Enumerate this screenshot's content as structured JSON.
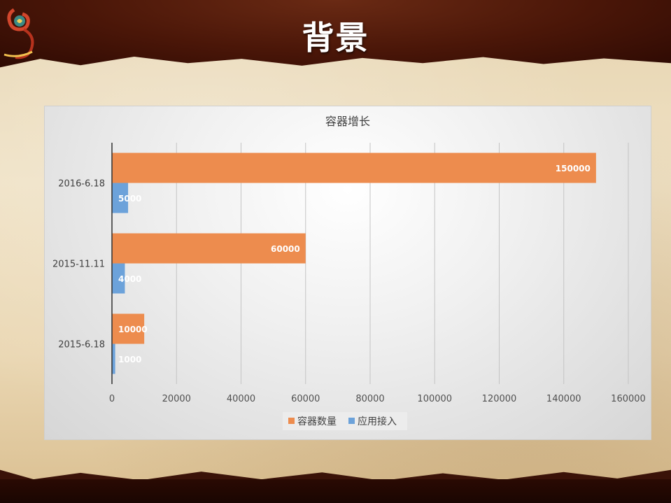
{
  "slide": {
    "title": "背景"
  },
  "colors": {
    "orange": "#ED8C4E",
    "blue": "#6CA2DA",
    "title_bg": "#4a1608"
  },
  "chart_data": {
    "type": "bar",
    "orientation": "horizontal",
    "title": "容器增长",
    "categories": [
      "2016-6.18",
      "2015-11.11",
      "2015-6.18"
    ],
    "series": [
      {
        "name": "容器数量",
        "color": "#ED8C4E",
        "values": [
          150000,
          60000,
          10000
        ]
      },
      {
        "name": "应用接入",
        "color": "#6CA2DA",
        "values": [
          5000,
          4000,
          1000
        ]
      }
    ],
    "xlim": [
      0,
      160000
    ],
    "xticks": [
      0,
      20000,
      40000,
      60000,
      80000,
      100000,
      120000,
      140000,
      160000
    ],
    "grid": true,
    "legend": "bottom"
  }
}
